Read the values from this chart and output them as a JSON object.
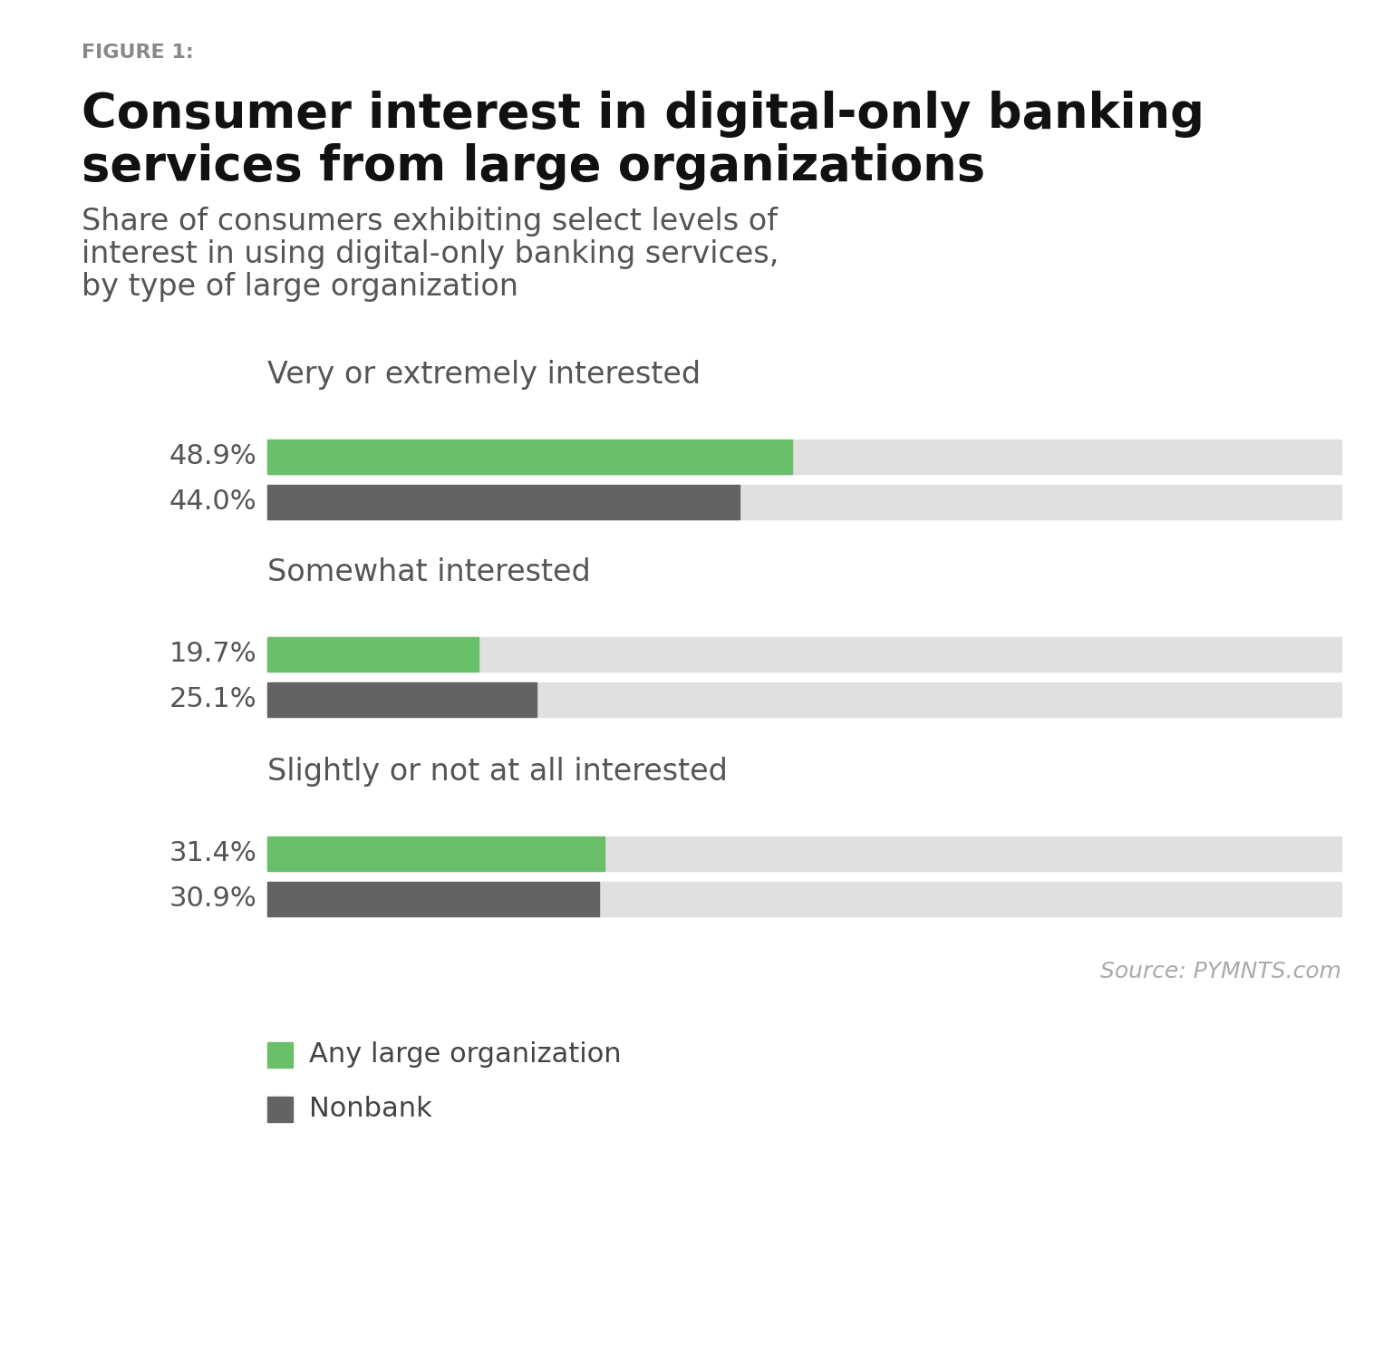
{
  "figure_label": "FIGURE 1:",
  "title_line1": "Consumer interest in digital-only banking",
  "title_line2": "services from large organizations",
  "subtitle_line1": "Share of consumers exhibiting select levels of",
  "subtitle_line2": "interest in using digital-only banking services,",
  "subtitle_line3": "by type of large organization",
  "source": "Source: PYMNTS.com",
  "categories": [
    "Very or extremely interested",
    "Somewhat interested",
    "Slightly or not at all interested"
  ],
  "green_values": [
    48.9,
    19.7,
    31.4
  ],
  "gray_values": [
    44.0,
    25.1,
    30.9
  ],
  "green_labels": [
    "48.9%",
    "19.7%",
    "31.4%"
  ],
  "gray_labels": [
    "44.0%",
    "25.1%",
    "30.9%"
  ],
  "green_color": "#6abf69",
  "gray_color": "#636363",
  "bg_bar_color": "#e0e0e0",
  "max_value": 100,
  "legend_items": [
    "Any large organization",
    "Nonbank"
  ],
  "background_color": "#ffffff",
  "figure_label_color": "#888888",
  "title_color": "#111111",
  "subtitle_color": "#555555",
  "category_color": "#555555",
  "source_color": "#aaaaaa",
  "label_color": "#555555",
  "legend_text_color": "#444444"
}
